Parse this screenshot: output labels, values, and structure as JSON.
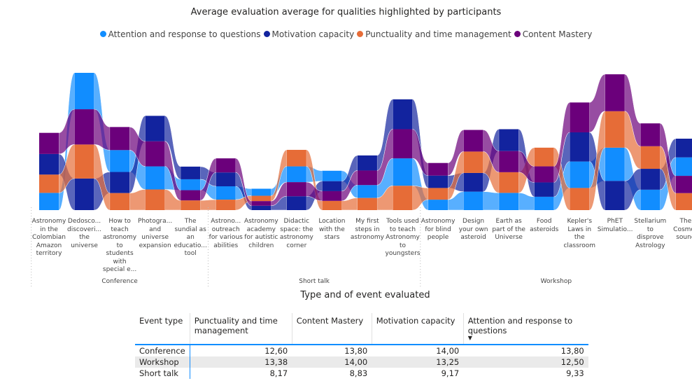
{
  "chart_data": {
    "type": "ribbon",
    "title": "Average evaluation average for qualities highlighted by participants",
    "groups": [
      {
        "name": "Conference",
        "categories": [
          "Astronomy in the Colombian Amazon territory",
          "Dedosco... discoveri... the universe",
          "How to teach astronomy to students with special e...",
          "Photogra... and universe expansion",
          "The sundial as an educatio... tool"
        ]
      },
      {
        "name": "Short talk",
        "categories": [
          "Astrono... outreach for various abilities",
          "Astronomy academy for autistic children",
          "Didactic space: the astronomy corner",
          "Location with the stars",
          "My first steps in astronomy",
          "Tools used to teach Astronomy to youngsters"
        ]
      },
      {
        "name": "Workshop",
        "categories": [
          "Astronomy for blind people",
          "Design your own asteroid",
          "Earth as part of the Universe",
          "Food asteroids",
          "Kepler's Laws in the classroom",
          "PhET Simulatio...",
          "Stellarium to disprove Astrology",
          "The Cosmos sound"
        ]
      }
    ],
    "series": [
      {
        "name": "Attention and response to questions",
        "color": "#118DFF",
        "values": [
          7.1,
          15,
          9,
          9.5,
          4.5,
          5.5,
          2.9,
          6.5,
          4.3,
          5.3,
          11.3,
          4.3,
          7.6,
          7.1,
          5.5,
          10.9,
          13.7,
          8.4,
          7.6
        ]
      },
      {
        "name": "Motivation capacity",
        "color": "#12239E",
        "values": [
          8.5,
          13,
          8.7,
          10.5,
          5.2,
          5.7,
          1.8,
          5.7,
          4.1,
          6.2,
          12.3,
          5.1,
          7.7,
          9,
          5.9,
          12,
          12,
          8.6,
          7.7
        ]
      },
      {
        "name": "Punctuality and time management",
        "color": "#E66C37",
        "values": [
          7.5,
          14,
          7,
          8.5,
          4,
          4.3,
          2.2,
          6.8,
          3.8,
          5,
          10,
          4.8,
          8.8,
          8.5,
          7.7,
          9.1,
          15,
          9.3,
          7
        ]
      },
      {
        "name": "Content Mastery",
        "color": "#6B007B",
        "values": [
          8.7,
          14.5,
          9.5,
          10.3,
          4.2,
          5.8,
          1.9,
          5.8,
          4,
          6,
          12,
          5.2,
          8.9,
          8.7,
          6.6,
          12.3,
          15.2,
          9.4,
          7.1
        ]
      }
    ]
  },
  "table": {
    "title": "Type and of event evaluated",
    "columns": [
      "Event type",
      "Punctuality and time management",
      "Content Mastery",
      "Motivation capacity",
      "Attention and response to questions"
    ],
    "rows": [
      [
        "Conference",
        "12,60",
        "13,80",
        "14,00",
        "13,80"
      ],
      [
        "Workshop",
        "13,38",
        "14,00",
        "13,25",
        "12,50"
      ],
      [
        "Short talk",
        "8,17",
        "8,83",
        "9,17",
        "9,33"
      ]
    ]
  }
}
